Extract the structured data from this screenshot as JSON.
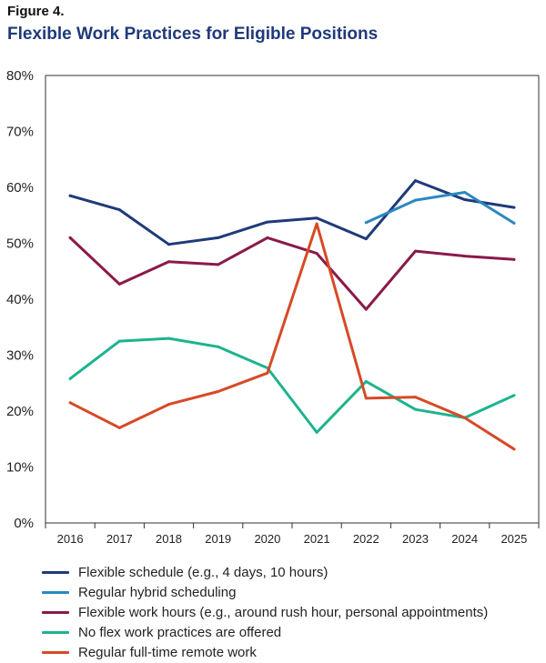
{
  "figure_label": "Figure 4.",
  "title": "Flexible Work Practices for Eligible Positions",
  "chart_data": {
    "type": "line",
    "title": "Flexible Work Practices for Eligible Positions",
    "xlabel": "",
    "ylabel": "",
    "ylim": [
      0,
      80
    ],
    "grid": false,
    "legend_position": "bottom",
    "categories": [
      "2016",
      "2017",
      "2018",
      "2019",
      "2020",
      "2021",
      "2022",
      "2023",
      "2024",
      "2025"
    ],
    "y_ticks": [
      "0%",
      "10%",
      "20%",
      "30%",
      "40%",
      "50%",
      "60%",
      "70%",
      "80%"
    ],
    "series": [
      {
        "name": "Flexible schedule (e.g., 4 days, 10 hours)",
        "color": "#1f3a7a",
        "values": [
          58.5,
          56,
          49.8,
          51,
          53.8,
          54.5,
          50.8,
          61.2,
          57.8,
          56.4
        ]
      },
      {
        "name": "Regular hybrid scheduling",
        "color": "#2b88c2",
        "values": [
          null,
          null,
          null,
          null,
          null,
          null,
          53.7,
          57.7,
          59.1,
          53.6
        ]
      },
      {
        "name": "Flexible work hours (e.g., around rush hour, personal appointments)",
        "color": "#8a1a4a",
        "values": [
          51,
          42.7,
          46.7,
          46.2,
          51,
          48.2,
          38.2,
          48.6,
          47.7,
          47.1
        ]
      },
      {
        "name": "No flex work practices are offered",
        "color": "#1db38f",
        "values": [
          25.8,
          32.5,
          33,
          31.5,
          27.7,
          16.2,
          25.3,
          20.3,
          18.8,
          22.8
        ]
      },
      {
        "name": "Regular full-time remote work",
        "color": "#d64a26",
        "values": [
          21.5,
          17,
          21.2,
          23.5,
          26.8,
          53.5,
          22.3,
          22.5,
          18.8,
          13.2
        ]
      }
    ]
  }
}
